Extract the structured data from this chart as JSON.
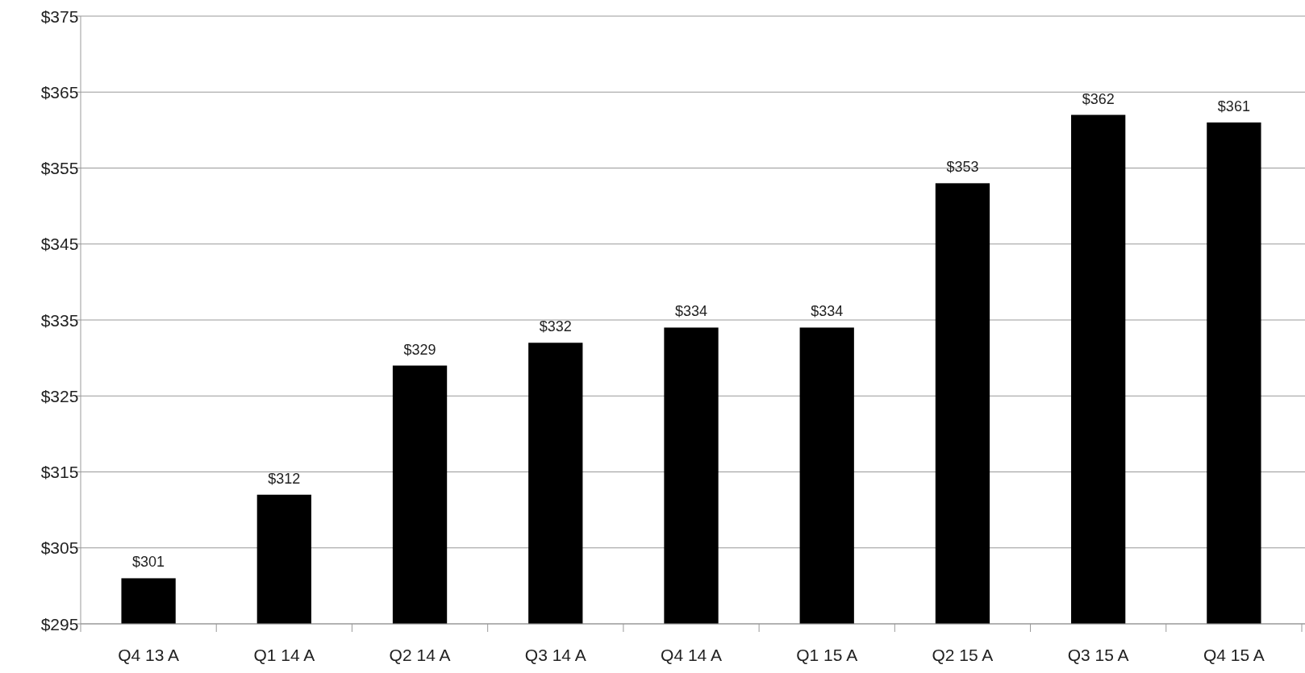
{
  "chart_data": {
    "type": "bar",
    "categories": [
      "Q4 13 A",
      "Q1 14 A",
      "Q2 14 A",
      "Q3 14 A",
      "Q4 14 A",
      "Q1 15 A",
      "Q2 15 A",
      "Q3 15 A",
      "Q4 15 A"
    ],
    "values": [
      301,
      312,
      329,
      332,
      334,
      334,
      353,
      362,
      361
    ],
    "value_labels": [
      "$301",
      "$312",
      "$329",
      "$332",
      "$334",
      "$334",
      "$353",
      "$362",
      "$361"
    ],
    "color": "#000000",
    "ylim": [
      295,
      375
    ],
    "yticks": [
      {
        "value": 295,
        "label": "$295"
      },
      {
        "value": 305,
        "label": "$305"
      },
      {
        "value": 315,
        "label": "$315"
      },
      {
        "value": 325,
        "label": "$325"
      },
      {
        "value": 335,
        "label": "$335"
      },
      {
        "value": 345,
        "label": "$345"
      },
      {
        "value": 355,
        "label": "$355"
      },
      {
        "value": 365,
        "label": "$365"
      },
      {
        "value": 375,
        "label": "$375"
      }
    ],
    "grid": "y"
  }
}
